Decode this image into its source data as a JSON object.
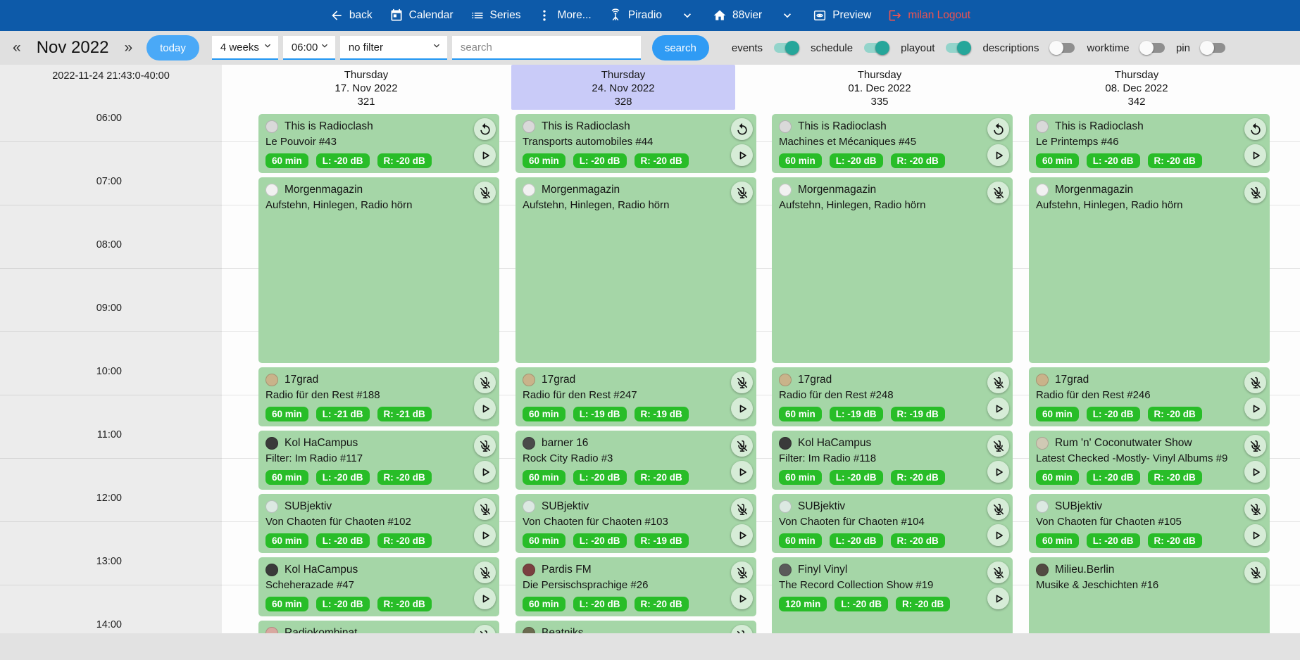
{
  "topbar": {
    "items": [
      {
        "id": "back",
        "icon": "back",
        "label": "back"
      },
      {
        "id": "calendar",
        "icon": "calendar",
        "label": "Calendar"
      },
      {
        "id": "series",
        "icon": "series",
        "label": "Series"
      },
      {
        "id": "more",
        "icon": "more",
        "label": "More..."
      },
      {
        "id": "piradio",
        "icon": "antenna",
        "label": "Piradio"
      },
      {
        "id": "piradio-expand",
        "icon": "chevron",
        "label": ""
      },
      {
        "id": "station",
        "icon": "home",
        "label": "88vier"
      },
      {
        "id": "station-expand",
        "icon": "chevron",
        "label": ""
      },
      {
        "id": "preview",
        "icon": "preview",
        "label": "Preview"
      },
      {
        "id": "logout",
        "icon": "logout",
        "label": "milan Logout",
        "style": "logout"
      }
    ]
  },
  "toolbar": {
    "prev": "«",
    "month_label": "Nov 2022",
    "next": "»",
    "today_label": "today",
    "range_select": "4 weeks",
    "time_select": "06:00",
    "filter_select": "no filter",
    "search_placeholder": "search",
    "search_value": "",
    "search_button": "search",
    "toggles": [
      {
        "id": "events",
        "label": "events",
        "on": true
      },
      {
        "id": "schedule",
        "label": "schedule",
        "on": true
      },
      {
        "id": "playout",
        "label": "playout",
        "on": true
      },
      {
        "id": "descriptions",
        "label": "descriptions",
        "on": false
      },
      {
        "id": "worktime",
        "label": "worktime",
        "on": false
      },
      {
        "id": "pin",
        "label": "pin",
        "on": false,
        "right": true
      }
    ]
  },
  "grid": {
    "timestamp": "2022-11-24 21:43:0-40:00",
    "hours": [
      "06:00",
      "07:00",
      "08:00",
      "09:00",
      "10:00",
      "11:00",
      "12:00",
      "13:00",
      "14:00"
    ],
    "columns": [
      {
        "day": "Thursday",
        "date": "17. Nov 2022",
        "number": "321",
        "highlight": false,
        "events": [
          {
            "show": "This is Radioclash",
            "episode": "Le Pouvoir #43",
            "start": "06:00",
            "duration_min": 60,
            "badges": [
              "60 min",
              "L: -20 dB",
              "R: -20 dB"
            ],
            "icons": [
              "replay",
              "play"
            ],
            "avatar_color": "#d9d9d9"
          },
          {
            "show": "Morgenmagazin",
            "episode": "Aufstehn, Hinlegen, Radio hörn",
            "start": "07:00",
            "duration_min": 180,
            "badges": [],
            "icons": [
              "mute"
            ],
            "avatar_color": "#f1f1f1"
          },
          {
            "show": "17grad",
            "episode": "Radio für den Rest #188",
            "start": "10:00",
            "duration_min": 60,
            "badges": [
              "60 min",
              "L: -21 dB",
              "R: -21 dB"
            ],
            "icons": [
              "mute",
              "play"
            ],
            "avatar_color": "#c9b38a"
          },
          {
            "show": "Kol HaCampus",
            "episode": "Filter: Im Radio #117",
            "start": "11:00",
            "duration_min": 60,
            "badges": [
              "60 min",
              "L: -20 dB",
              "R: -20 dB"
            ],
            "icons": [
              "mute",
              "play"
            ],
            "avatar_color": "#3a3a3a"
          },
          {
            "show": "SUBjektiv",
            "episode": "Von Chaoten für Chaoten #102",
            "start": "12:00",
            "duration_min": 60,
            "badges": [
              "60 min",
              "L: -20 dB",
              "R: -20 dB"
            ],
            "icons": [
              "mute",
              "play"
            ],
            "avatar_color": "#dce9e2"
          },
          {
            "show": "Kol HaCampus",
            "episode": "Scheherazade #47",
            "start": "13:00",
            "duration_min": 60,
            "badges": [
              "60 min",
              "L: -20 dB",
              "R: -20 dB"
            ],
            "icons": [
              "mute",
              "play"
            ],
            "avatar_color": "#3a3a3a"
          },
          {
            "show": "Radiokombinat",
            "episode": "",
            "start": "14:00",
            "duration_min": 60,
            "badges": [],
            "icons": [
              "mute"
            ],
            "avatar_color": "#d8a8a0"
          }
        ]
      },
      {
        "day": "Thursday",
        "date": "24. Nov 2022",
        "number": "328",
        "highlight": true,
        "events": [
          {
            "show": "This is Radioclash",
            "episode": "Transports automobiles #44",
            "start": "06:00",
            "duration_min": 60,
            "badges": [
              "60 min",
              "L: -20 dB",
              "R: -20 dB"
            ],
            "icons": [
              "replay",
              "play"
            ],
            "avatar_color": "#d9d9d9"
          },
          {
            "show": "Morgenmagazin",
            "episode": "Aufstehn, Hinlegen, Radio hörn",
            "start": "07:00",
            "duration_min": 180,
            "badges": [],
            "icons": [
              "mute"
            ],
            "avatar_color": "#f1f1f1"
          },
          {
            "show": "17grad",
            "episode": "Radio für den Rest #247",
            "start": "10:00",
            "duration_min": 60,
            "badges": [
              "60 min",
              "L: -19 dB",
              "R: -19 dB"
            ],
            "icons": [
              "mute",
              "play"
            ],
            "avatar_color": "#c9b38a"
          },
          {
            "show": "barner 16",
            "episode": "Rock City Radio #3",
            "start": "11:00",
            "duration_min": 60,
            "badges": [
              "60 min",
              "L: -20 dB",
              "R: -20 dB"
            ],
            "icons": [
              "mute",
              "play"
            ],
            "avatar_color": "#4a4a4a"
          },
          {
            "show": "SUBjektiv",
            "episode": "Von Chaoten für Chaoten #103",
            "start": "12:00",
            "duration_min": 60,
            "badges": [
              "60 min",
              "L: -20 dB",
              "R: -19 dB"
            ],
            "icons": [
              "mute",
              "play"
            ],
            "avatar_color": "#dce9e2"
          },
          {
            "show": "Pardis FM",
            "episode": "Die Persischsprachige #26",
            "start": "13:00",
            "duration_min": 60,
            "badges": [
              "60 min",
              "L: -20 dB",
              "R: -20 dB"
            ],
            "icons": [
              "mute",
              "play"
            ],
            "avatar_color": "#7a4040"
          },
          {
            "show": "Beatniks",
            "episode": "",
            "start": "14:00",
            "duration_min": 60,
            "badges": [],
            "icons": [
              "mute"
            ],
            "avatar_color": "#6b6b50"
          }
        ]
      },
      {
        "day": "Thursday",
        "date": "01. Dec 2022",
        "number": "335",
        "highlight": false,
        "events": [
          {
            "show": "This is Radioclash",
            "episode": "Machines et Mécaniques #45",
            "start": "06:00",
            "duration_min": 60,
            "badges": [
              "60 min",
              "L: -20 dB",
              "R: -20 dB"
            ],
            "icons": [
              "replay",
              "play"
            ],
            "avatar_color": "#d9d9d9"
          },
          {
            "show": "Morgenmagazin",
            "episode": "Aufstehn, Hinlegen, Radio hörn",
            "start": "07:00",
            "duration_min": 180,
            "badges": [],
            "icons": [
              "mute"
            ],
            "avatar_color": "#f1f1f1"
          },
          {
            "show": "17grad",
            "episode": "Radio für den Rest #248",
            "start": "10:00",
            "duration_min": 60,
            "badges": [
              "60 min",
              "L: -19 dB",
              "R: -19 dB"
            ],
            "icons": [
              "mute",
              "play"
            ],
            "avatar_color": "#c9b38a"
          },
          {
            "show": "Kol HaCampus",
            "episode": "Filter: Im Radio #118",
            "start": "11:00",
            "duration_min": 60,
            "badges": [
              "60 min",
              "L: -20 dB",
              "R: -20 dB"
            ],
            "icons": [
              "mute",
              "play"
            ],
            "avatar_color": "#3a3a3a"
          },
          {
            "show": "SUBjektiv",
            "episode": "Von Chaoten für Chaoten #104",
            "start": "12:00",
            "duration_min": 60,
            "badges": [
              "60 min",
              "L: -20 dB",
              "R: -20 dB"
            ],
            "icons": [
              "mute",
              "play"
            ],
            "avatar_color": "#dce9e2"
          },
          {
            "show": "Finyl Vinyl",
            "episode": "The Record Collection Show #19",
            "start": "13:00",
            "duration_min": 120,
            "badges": [
              "120 min",
              "L: -20 dB",
              "R: -20 dB"
            ],
            "icons": [
              "mute",
              "play"
            ],
            "avatar_color": "#5a5a5a"
          }
        ]
      },
      {
        "day": "Thursday",
        "date": "08. Dec 2022",
        "number": "342",
        "highlight": false,
        "events": [
          {
            "show": "This is Radioclash",
            "episode": "Le Printemps #46",
            "start": "06:00",
            "duration_min": 60,
            "badges": [
              "60 min",
              "L: -20 dB",
              "R: -20 dB"
            ],
            "icons": [
              "replay",
              "play"
            ],
            "avatar_color": "#d9d9d9"
          },
          {
            "show": "Morgenmagazin",
            "episode": "Aufstehn, Hinlegen, Radio hörn",
            "start": "07:00",
            "duration_min": 180,
            "badges": [],
            "icons": [
              "mute"
            ],
            "avatar_color": "#f1f1f1"
          },
          {
            "show": "17grad",
            "episode": "Radio für den Rest #246",
            "start": "10:00",
            "duration_min": 60,
            "badges": [
              "60 min",
              "L: -20 dB",
              "R: -20 dB"
            ],
            "icons": [
              "mute",
              "play"
            ],
            "avatar_color": "#c9b38a"
          },
          {
            "show": "Rum 'n' Coconutwater Show",
            "episode": "Latest Checked -Mostly- Vinyl Albums #9",
            "start": "11:00",
            "duration_min": 60,
            "badges": [
              "60 min",
              "L: -20 dB",
              "R: -20 dB"
            ],
            "icons": [
              "mute",
              "play"
            ],
            "avatar_color": "#cfc9b4"
          },
          {
            "show": "SUBjektiv",
            "episode": "Von Chaoten für Chaoten #105",
            "start": "12:00",
            "duration_min": 60,
            "badges": [
              "60 min",
              "L: -20 dB",
              "R: -20 dB"
            ],
            "icons": [
              "mute",
              "play"
            ],
            "avatar_color": "#dce9e2"
          },
          {
            "show": "Milieu.Berlin",
            "episode": "Musike & Jeschichten #16",
            "start": "13:00",
            "duration_min": 120,
            "badges": [],
            "icons": [
              "mute"
            ],
            "avatar_color": "#524a42"
          }
        ]
      }
    ]
  },
  "colors": {
    "topbar": "#0d5aa9",
    "accent_blue": "#2f9bf4",
    "toggle_on": "#26a69a",
    "card_green": "#a5d6a7",
    "badge_green": "#28bd28",
    "highlight_lavender": "#c9cbf8",
    "logout_red": "#ef5350"
  }
}
